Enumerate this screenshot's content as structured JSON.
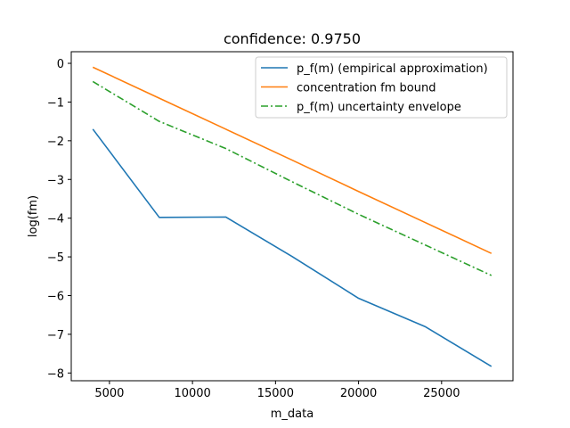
{
  "chart_data": {
    "type": "line",
    "title": "confidence: 0.9750",
    "xlabel": "m_data",
    "ylabel": "log(fm)",
    "xlim": [
      2700,
      29300
    ],
    "ylim": [
      -8.2,
      0.3
    ],
    "xticks": [
      5000,
      10000,
      15000,
      20000,
      25000
    ],
    "xtick_labels": [
      "5000",
      "10000",
      "15000",
      "20000",
      "25000"
    ],
    "yticks": [
      0,
      -1,
      -2,
      -3,
      -4,
      -5,
      -6,
      -7,
      -8
    ],
    "ytick_labels": [
      "0",
      "−1",
      "−2",
      "−3",
      "−4",
      "−5",
      "−6",
      "−7",
      "−8"
    ],
    "grid": false,
    "legend_position": "top-right",
    "x": [
      4000,
      8000,
      12000,
      16000,
      20000,
      24000,
      28000
    ],
    "series": [
      {
        "name": "p_f(m) (empirical approximation)",
        "values": [
          -1.7,
          -3.98,
          -3.97,
          -4.99,
          -6.07,
          -6.8,
          -7.83
        ],
        "color": "#1f77b4",
        "dash": "solid"
      },
      {
        "name": "concentration fm bound",
        "values": [
          -0.1,
          -0.9,
          -1.7,
          -2.5,
          -3.31,
          -4.11,
          -4.91
        ],
        "color": "#ff7f0e",
        "dash": "solid"
      },
      {
        "name": "p_f(m) uncertainty envelope",
        "values": [
          -0.47,
          -1.5,
          -2.2,
          -3.06,
          -3.9,
          -4.69,
          -5.48
        ],
        "color": "#2ca02c",
        "dash": "dashdot"
      }
    ]
  }
}
